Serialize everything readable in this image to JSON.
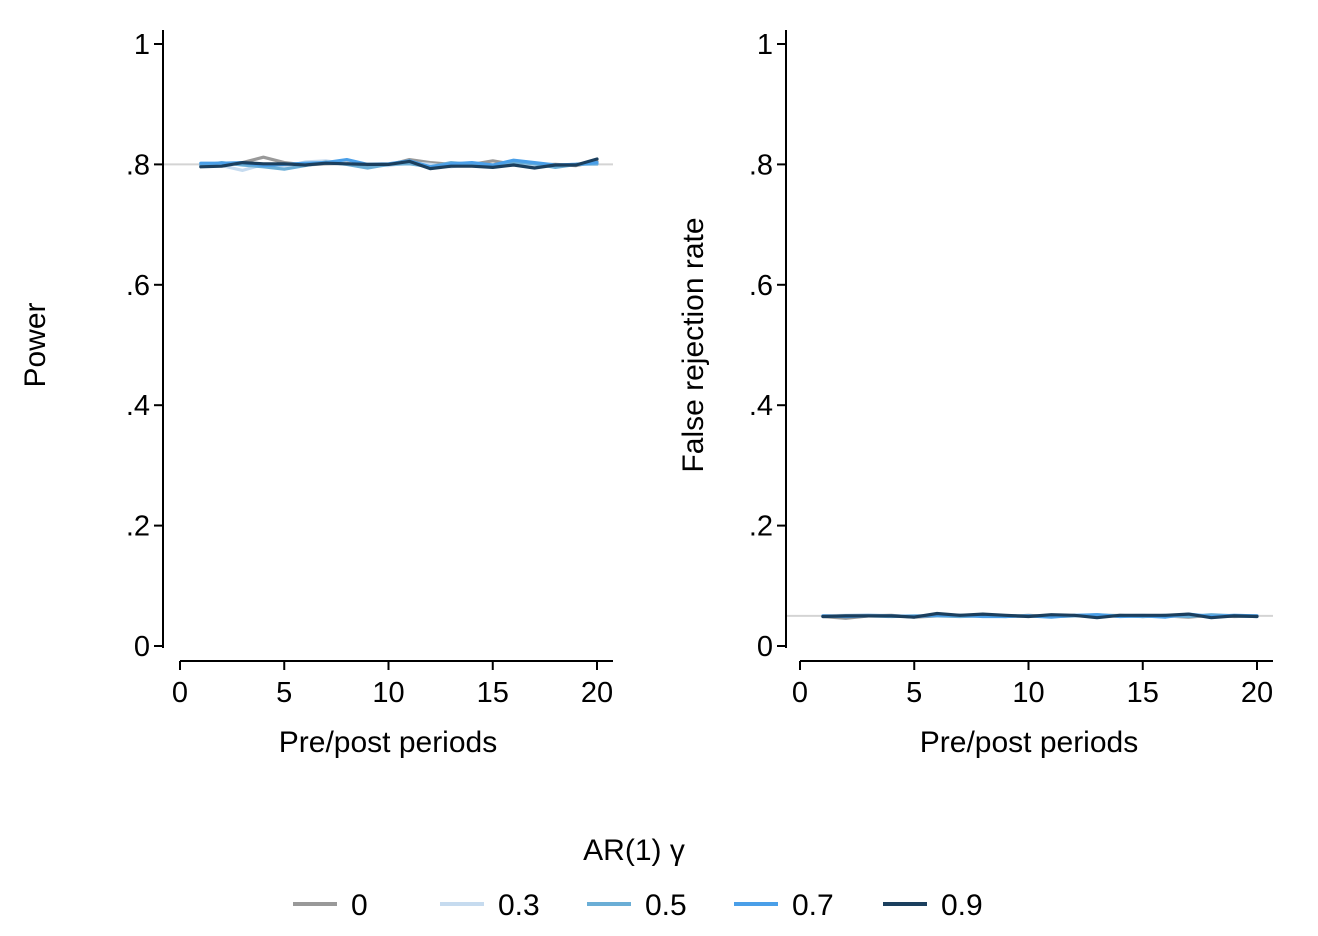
{
  "chart_data": [
    {
      "type": "line",
      "xlabel": "Pre/post periods",
      "ylabel": "Power",
      "xlim": [
        0,
        20
      ],
      "ylim": [
        0,
        1
      ],
      "xticks": [
        0,
        5,
        10,
        15,
        20
      ],
      "xtick_labels": [
        "0",
        "5",
        "10",
        "15",
        "20"
      ],
      "yticks": [
        0,
        0.2,
        0.4,
        0.6,
        0.8,
        1
      ],
      "ytick_labels": [
        "0",
        ".2",
        ".4",
        ".6",
        ".8",
        "1"
      ],
      "reference_line": 0.8,
      "grid": false,
      "x": [
        1,
        2,
        3,
        4,
        5,
        6,
        7,
        8,
        9,
        10,
        11,
        12,
        13,
        14,
        15,
        16,
        17,
        18,
        19,
        20
      ],
      "series": [
        {
          "name": "0",
          "color": "#999999",
          "values": [
            0.8,
            0.799,
            0.803,
            0.812,
            0.803,
            0.799,
            0.801,
            0.802,
            0.797,
            0.799,
            0.808,
            0.803,
            0.8,
            0.8,
            0.806,
            0.8,
            0.799,
            0.8,
            0.798,
            0.805
          ]
        },
        {
          "name": "0.3",
          "color": "#c6dbef",
          "values": [
            0.801,
            0.798,
            0.79,
            0.8,
            0.796,
            0.804,
            0.806,
            0.801,
            0.8,
            0.798,
            0.803,
            0.8,
            0.796,
            0.801,
            0.799,
            0.802,
            0.798,
            0.797,
            0.801,
            0.8
          ]
        },
        {
          "name": "0.5",
          "color": "#6baed6",
          "values": [
            0.798,
            0.803,
            0.799,
            0.796,
            0.792,
            0.798,
            0.804,
            0.8,
            0.794,
            0.8,
            0.801,
            0.796,
            0.803,
            0.8,
            0.798,
            0.804,
            0.801,
            0.795,
            0.8,
            0.801
          ]
        },
        {
          "name": "0.7",
          "color": "#4a9fe8",
          "values": [
            0.802,
            0.802,
            0.803,
            0.798,
            0.8,
            0.802,
            0.803,
            0.808,
            0.8,
            0.801,
            0.806,
            0.796,
            0.801,
            0.803,
            0.799,
            0.807,
            0.803,
            0.799,
            0.8,
            0.803
          ]
        },
        {
          "name": "0.9",
          "color": "#1b3f5e",
          "values": [
            0.796,
            0.797,
            0.803,
            0.801,
            0.801,
            0.799,
            0.802,
            0.801,
            0.8,
            0.8,
            0.805,
            0.793,
            0.797,
            0.797,
            0.795,
            0.799,
            0.794,
            0.799,
            0.799,
            0.809
          ]
        }
      ]
    },
    {
      "type": "line",
      "xlabel": "Pre/post periods",
      "ylabel": "False rejection rate",
      "xlim": [
        0,
        20
      ],
      "ylim": [
        0,
        1
      ],
      "xticks": [
        0,
        5,
        10,
        15,
        20
      ],
      "xtick_labels": [
        "0",
        "5",
        "10",
        "15",
        "20"
      ],
      "yticks": [
        0,
        0.2,
        0.4,
        0.6,
        0.8,
        1
      ],
      "ytick_labels": [
        "0",
        ".2",
        ".4",
        ".6",
        ".8",
        "1"
      ],
      "reference_line": 0.05,
      "grid": false,
      "x": [
        1,
        2,
        3,
        4,
        5,
        6,
        7,
        8,
        9,
        10,
        11,
        12,
        13,
        14,
        15,
        16,
        17,
        18,
        19,
        20
      ],
      "series": [
        {
          "name": "0",
          "color": "#999999",
          "values": [
            0.049,
            0.046,
            0.05,
            0.051,
            0.048,
            0.05,
            0.051,
            0.05,
            0.049,
            0.051,
            0.049,
            0.05,
            0.05,
            0.051,
            0.049,
            0.05,
            0.048,
            0.051,
            0.049,
            0.05
          ]
        },
        {
          "name": "0.3",
          "color": "#c6dbef",
          "values": [
            0.05,
            0.051,
            0.052,
            0.05,
            0.049,
            0.051,
            0.05,
            0.051,
            0.05,
            0.049,
            0.051,
            0.05,
            0.049,
            0.05,
            0.051,
            0.049,
            0.05,
            0.05,
            0.051,
            0.05
          ]
        },
        {
          "name": "0.5",
          "color": "#6baed6",
          "values": [
            0.049,
            0.05,
            0.05,
            0.049,
            0.05,
            0.05,
            0.049,
            0.05,
            0.05,
            0.05,
            0.049,
            0.05,
            0.052,
            0.05,
            0.049,
            0.051,
            0.049,
            0.052,
            0.05,
            0.049
          ]
        },
        {
          "name": "0.7",
          "color": "#4a9fe8",
          "values": [
            0.05,
            0.049,
            0.05,
            0.05,
            0.049,
            0.051,
            0.051,
            0.049,
            0.049,
            0.05,
            0.048,
            0.051,
            0.052,
            0.049,
            0.05,
            0.048,
            0.053,
            0.049,
            0.051,
            0.05
          ]
        },
        {
          "name": "0.9",
          "color": "#1b3f5e",
          "values": [
            0.049,
            0.05,
            0.05,
            0.05,
            0.048,
            0.054,
            0.051,
            0.053,
            0.051,
            0.049,
            0.052,
            0.051,
            0.047,
            0.051,
            0.051,
            0.051,
            0.053,
            0.047,
            0.05,
            0.049
          ]
        }
      ]
    }
  ],
  "legend": {
    "title": "AR(1) γ",
    "position": "bottom-center",
    "entries": [
      {
        "label": "0",
        "color": "#999999"
      },
      {
        "label": "0.3",
        "color": "#c6dbef"
      },
      {
        "label": "0.5",
        "color": "#6baed6"
      },
      {
        "label": "0.7",
        "color": "#4a9fe8"
      },
      {
        "label": "0.9",
        "color": "#1b3f5e"
      }
    ]
  }
}
